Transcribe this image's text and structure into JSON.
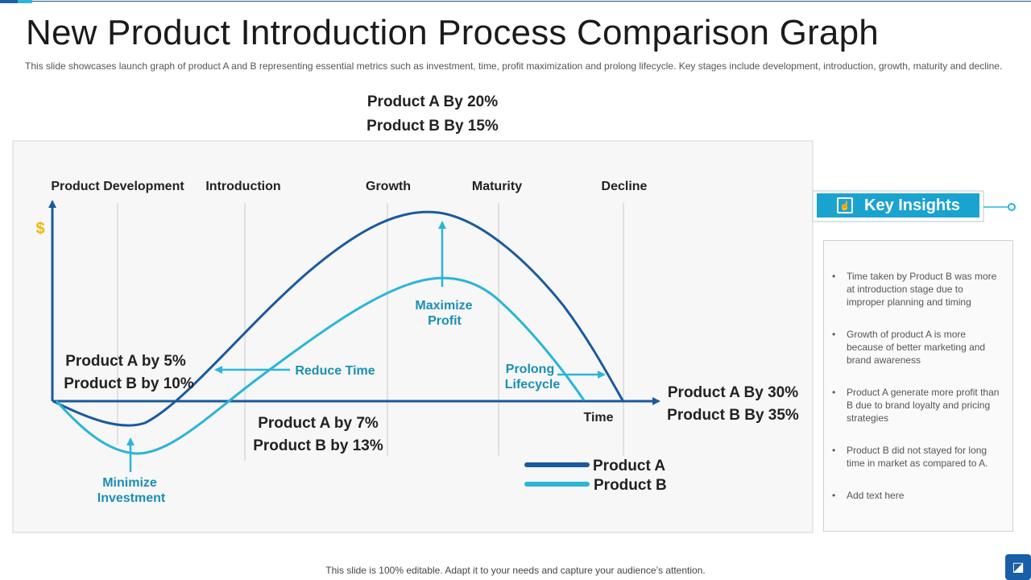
{
  "header": {
    "title": "New Product Introduction Process Comparison Graph",
    "subtitle": "This slide showcases launch graph of product A and B representing essential metrics such as investment, time, profit maximization and prolong lifecycle. Key stages include development, introduction, growth, maturity and decline."
  },
  "diagram": {
    "stages": [
      "Product Development",
      "Introduction",
      "Growth",
      "Maturity",
      "Decline"
    ],
    "y_axis_symbol": "$",
    "x_axis_label": "Time",
    "top_metrics": [
      "Product A By 20%",
      "Product B By 15%"
    ],
    "left_metrics": [
      "Product A by 5%",
      "Product B by 10%"
    ],
    "middle_metrics": [
      "Product A by 7%",
      "Product B by 13%"
    ],
    "right_metrics": [
      "Product A By 30%",
      "Product B By 35%"
    ],
    "annotations": {
      "reduce_time": "Reduce Time",
      "maximize_profit": [
        "Maximize",
        "Profit"
      ],
      "prolong_lifecycle": [
        "Prolong",
        "Lifecycle"
      ],
      "minimize_investment": [
        "Minimize",
        "Investment"
      ]
    },
    "legend": [
      {
        "name": "Product A",
        "color": "#1a5a9e"
      },
      {
        "name": "Product B",
        "color": "#2bb5d8"
      }
    ]
  },
  "insights": {
    "title": "Key Insights",
    "icon": "hand-pointer-icon",
    "items": [
      "Time taken by Product B was more at introduction stage due to improper planning and timing",
      "Growth of product A is more because of better marketing and brand awareness",
      "Product A generate more profit than B due to brand loyalty and pricing strategies",
      "Product B did not stayed for long time in market as compared to A.",
      "Add text here"
    ]
  },
  "footer": {
    "text": "This slide is 100% editable. Adapt it to your needs and capture your audience’s attention."
  },
  "colors": {
    "accent": "#1ba3d0",
    "product_a": "#1a5a9e",
    "product_b": "#2bb5d8",
    "annotation_text": "#1a8fb3"
  }
}
